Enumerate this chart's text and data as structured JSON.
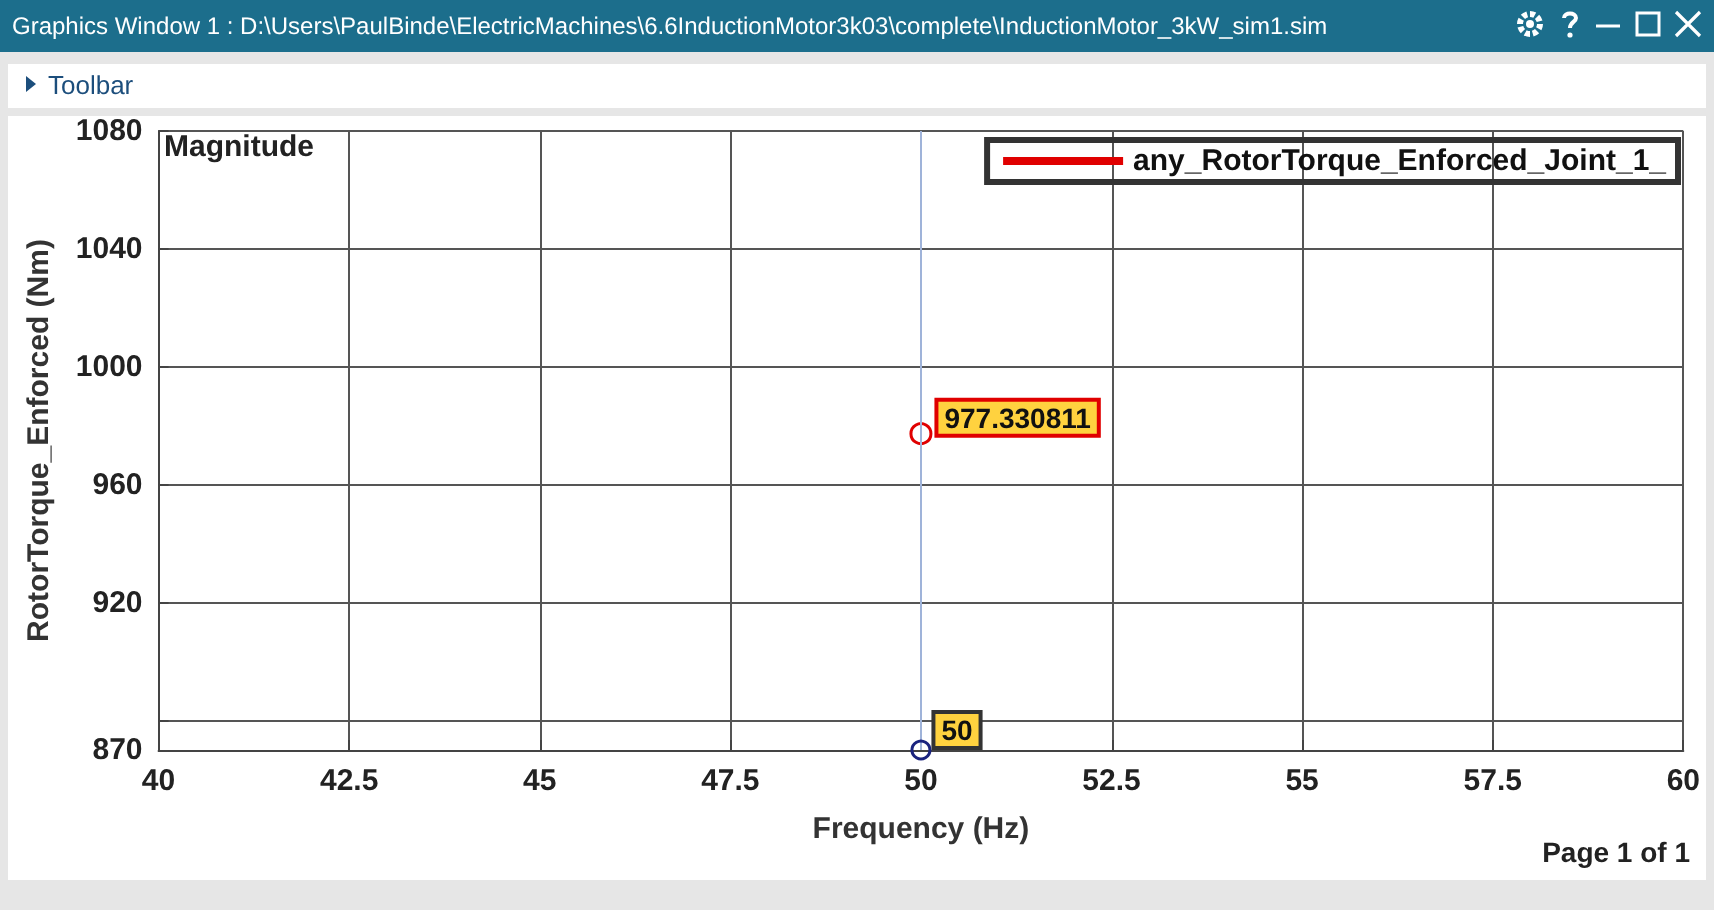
{
  "chart_data": {
    "type": "line",
    "title": "Graphics Window 1 : D:\\Users\\PaulBinde\\ElectricMachines\\6.6InductionMotor3k03\\complete\\InductionMotor_3kW_sim1.sim",
    "xlabel": "Frequency (Hz)",
    "ylabel": "RotorTorque_Enforced (Nm)",
    "annotations": [
      "Toolbar",
      "Magnitude",
      {
        "text": "50",
        "x": 50,
        "y": 870
      },
      "Page 1 of 1"
    ],
    "series": [
      {
        "name": "any_RotorTorque_Enforced_Joint_1_",
        "color": "#e00000",
        "x": [
          50
        ],
        "values": [
          977.330811
        ]
      }
    ],
    "xlim": [
      40,
      60
    ],
    "xticks": [
      40,
      42.5,
      45,
      47.5,
      50,
      52.5,
      55,
      57.5,
      60
    ],
    "ylim": [
      870,
      1080
    ],
    "yticks": [
      870,
      {
        "value": 880,
        "label": null
      },
      920,
      960,
      1000,
      1040,
      1080
    ],
    "ref_lines": [
      {
        "axis": "x",
        "value": 50,
        "color": "#9fb3d9"
      }
    ],
    "grid": true,
    "legend": "top right",
    "marker": "circle",
    "data_labels": true
  }
}
